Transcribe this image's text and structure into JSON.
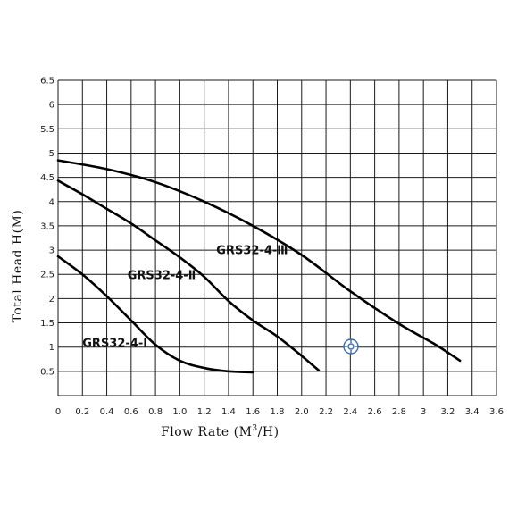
{
  "chart_data": {
    "type": "line",
    "xlabel_main": "Flow Rate (M",
    "xlabel_sup": "3",
    "xlabel_tail": "/H)",
    "ylabel": "Total Head H(M)",
    "xlim": [
      0,
      3.6
    ],
    "ylim": [
      0,
      6.5
    ],
    "x_ticks": [
      "0",
      "0.2",
      "0.4",
      "0.6",
      "0.8",
      "1.0",
      "1.2",
      "1.4",
      "1.6",
      "1.8",
      "2.0",
      "2.2",
      "2.4",
      "2.6",
      "2.8",
      "3",
      "3.2",
      "3.4",
      "3.6"
    ],
    "y_ticks": [
      "0.5",
      "1",
      "1.5",
      "2",
      "2.5",
      "3",
      "3.5",
      "4",
      "4.5",
      "5",
      "5.5",
      "6",
      "6.5"
    ],
    "grid": true,
    "series": [
      {
        "name": "GRS32-4-Ⅰ",
        "x": [
          0,
          0.2,
          0.4,
          0.6,
          0.8,
          1.0,
          1.2,
          1.4,
          1.6
        ],
        "y": [
          2.87,
          2.5,
          2.05,
          1.55,
          1.05,
          0.72,
          0.57,
          0.5,
          0.48
        ]
      },
      {
        "name": "GRS32-4-Ⅱ",
        "x": [
          0,
          0.2,
          0.4,
          0.6,
          0.8,
          1.0,
          1.2,
          1.4,
          1.6,
          1.8,
          2.0,
          2.14
        ],
        "y": [
          4.43,
          4.15,
          3.85,
          3.55,
          3.2,
          2.85,
          2.45,
          1.95,
          1.55,
          1.22,
          0.82,
          0.52
        ]
      },
      {
        "name": "GRS32-4-Ⅲ",
        "x": [
          0,
          0.4,
          0.8,
          1.2,
          1.6,
          2.0,
          2.4,
          2.8,
          3.1,
          3.3
        ],
        "y": [
          4.85,
          4.67,
          4.4,
          4.0,
          3.5,
          2.9,
          2.15,
          1.48,
          1.05,
          0.72
        ]
      }
    ],
    "labels": [
      {
        "text": "GRS32-4-Ⅰ",
        "x": 0.2,
        "y": 1.0
      },
      {
        "text": "GRS32-4-Ⅱ",
        "x": 0.57,
        "y": 2.4
      },
      {
        "text": "GRS32-4-Ⅲ",
        "x": 1.3,
        "y": 2.92
      }
    ]
  }
}
